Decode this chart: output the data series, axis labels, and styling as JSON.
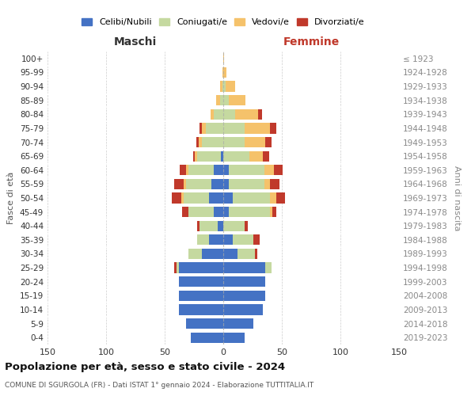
{
  "age_groups": [
    "0-4",
    "5-9",
    "10-14",
    "15-19",
    "20-24",
    "25-29",
    "30-34",
    "35-39",
    "40-44",
    "45-49",
    "50-54",
    "55-59",
    "60-64",
    "65-69",
    "70-74",
    "75-79",
    "80-84",
    "85-89",
    "90-94",
    "95-99",
    "100+"
  ],
  "birth_years": [
    "2019-2023",
    "2014-2018",
    "2009-2013",
    "2004-2008",
    "1999-2003",
    "1994-1998",
    "1989-1993",
    "1984-1988",
    "1979-1983",
    "1974-1978",
    "1969-1973",
    "1964-1968",
    "1959-1963",
    "1954-1958",
    "1949-1953",
    "1944-1948",
    "1939-1943",
    "1934-1938",
    "1929-1933",
    "1924-1928",
    "≤ 1923"
  ],
  "males_celibi": [
    28,
    32,
    38,
    38,
    38,
    38,
    18,
    12,
    5,
    8,
    12,
    10,
    8,
    2,
    0,
    0,
    0,
    0,
    0,
    0,
    0
  ],
  "males_coniugati": [
    0,
    0,
    0,
    0,
    0,
    2,
    12,
    10,
    15,
    22,
    22,
    22,
    22,
    20,
    18,
    15,
    8,
    3,
    1,
    0,
    0
  ],
  "males_vedovi": [
    0,
    0,
    0,
    0,
    0,
    0,
    0,
    0,
    0,
    0,
    2,
    2,
    2,
    2,
    3,
    3,
    3,
    3,
    2,
    1,
    0
  ],
  "males_divorziati": [
    0,
    0,
    0,
    0,
    0,
    2,
    0,
    0,
    2,
    5,
    8,
    8,
    5,
    2,
    2,
    2,
    0,
    0,
    0,
    0,
    0
  ],
  "females_nubili": [
    18,
    26,
    34,
    36,
    36,
    36,
    12,
    8,
    0,
    5,
    8,
    5,
    5,
    0,
    0,
    0,
    0,
    0,
    0,
    0,
    0
  ],
  "females_coniugate": [
    0,
    0,
    0,
    0,
    0,
    5,
    15,
    18,
    18,
    35,
    32,
    30,
    30,
    22,
    18,
    18,
    10,
    5,
    2,
    0,
    0
  ],
  "females_vedove": [
    0,
    0,
    0,
    0,
    0,
    0,
    0,
    0,
    0,
    2,
    5,
    5,
    8,
    12,
    18,
    22,
    20,
    14,
    8,
    3,
    1
  ],
  "females_divorziate": [
    0,
    0,
    0,
    0,
    0,
    0,
    2,
    5,
    3,
    3,
    8,
    8,
    8,
    5,
    5,
    5,
    3,
    0,
    0,
    0,
    0
  ],
  "col_celibi": "#4472C4",
  "col_coniugati": "#c5d9a0",
  "col_vedovi": "#f5c26b",
  "col_divorziati": "#c0392b",
  "xlim": 150,
  "title": "Popolazione per età, sesso e stato civile - 2024",
  "subtitle": "COMUNE DI SGURGOLA (FR) - Dati ISTAT 1° gennaio 2024 - Elaborazione TUTTITALIA.IT",
  "legend_labels": [
    "Celibi/Nubili",
    "Coniugati/e",
    "Vedovi/e",
    "Divorziati/e"
  ]
}
